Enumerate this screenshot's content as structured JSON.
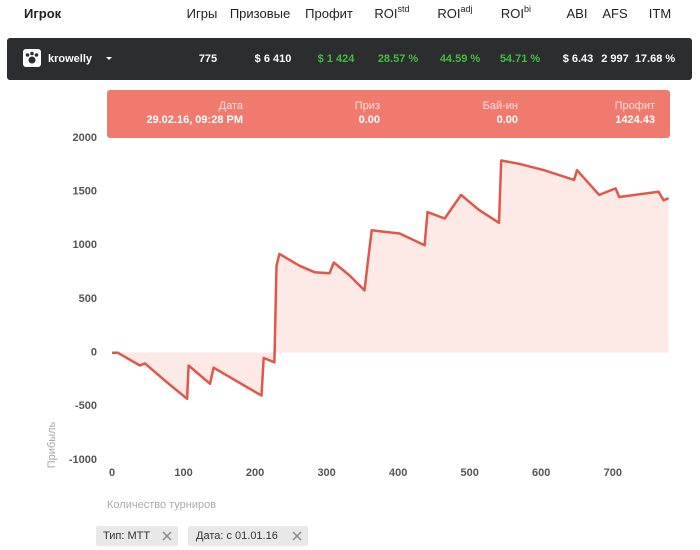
{
  "header": {
    "columns": [
      {
        "label": "Игрок"
      },
      {
        "label": "Игры"
      },
      {
        "label": "Призовые"
      },
      {
        "label": "Профит"
      },
      {
        "label": "ROI",
        "sup": "std"
      },
      {
        "label": "ROI",
        "sup": "adj"
      },
      {
        "label": "ROI",
        "sup": "bi"
      },
      {
        "label": "ABI"
      },
      {
        "label": "AFS"
      },
      {
        "label": "ITM"
      }
    ]
  },
  "player": {
    "name": "krowelly",
    "cells": [
      "775",
      "$ 6 410",
      "$ 1 424",
      "28.57 %",
      "44.59 %",
      "54.71 %",
      "$ 6.43",
      "2 997",
      "17.68 %"
    ]
  },
  "tooltip": {
    "fields": [
      {
        "label": "Дата",
        "value": "29.02.16, 09:28 PM"
      },
      {
        "label": "Приз",
        "value": "0.00"
      },
      {
        "label": "Бай-ин",
        "value": "0.00"
      },
      {
        "label": "Профит",
        "value": "1424.43"
      }
    ]
  },
  "chart_data": {
    "type": "line",
    "x_label": "Количество турниров",
    "y_label": "Прибыль",
    "x": [
      0,
      8,
      39,
      46,
      74,
      105,
      107,
      137,
      142,
      209,
      212,
      227,
      230,
      234,
      262,
      283,
      304,
      310,
      332,
      353,
      357,
      363,
      402,
      437,
      441,
      465,
      488,
      513,
      541,
      544,
      569,
      604,
      646,
      650,
      681,
      704,
      709,
      764,
      771,
      778
    ],
    "values": [
      0,
      0,
      -120,
      -100,
      -260,
      -430,
      -120,
      -290,
      -140,
      -400,
      -50,
      -90,
      810,
      920,
      810,
      750,
      740,
      840,
      720,
      580,
      810,
      1140,
      1110,
      1000,
      1310,
      1250,
      1470,
      1330,
      1210,
      1790,
      1760,
      1700,
      1610,
      1700,
      1470,
      1530,
      1450,
      1500,
      1420,
      1440
    ],
    "color": "#e0574b",
    "area_color": "#fde9e6",
    "xlim": [
      -7,
      780
    ],
    "ylim": [
      -1000,
      2000
    ],
    "xticks": [
      0,
      100,
      200,
      300,
      400,
      500,
      600,
      700
    ],
    "yticks": [
      -1000,
      -500,
      0,
      500,
      1000,
      1500,
      2000
    ]
  },
  "filters": [
    "Тип: MTT",
    "Дата: с 01.01.16"
  ]
}
